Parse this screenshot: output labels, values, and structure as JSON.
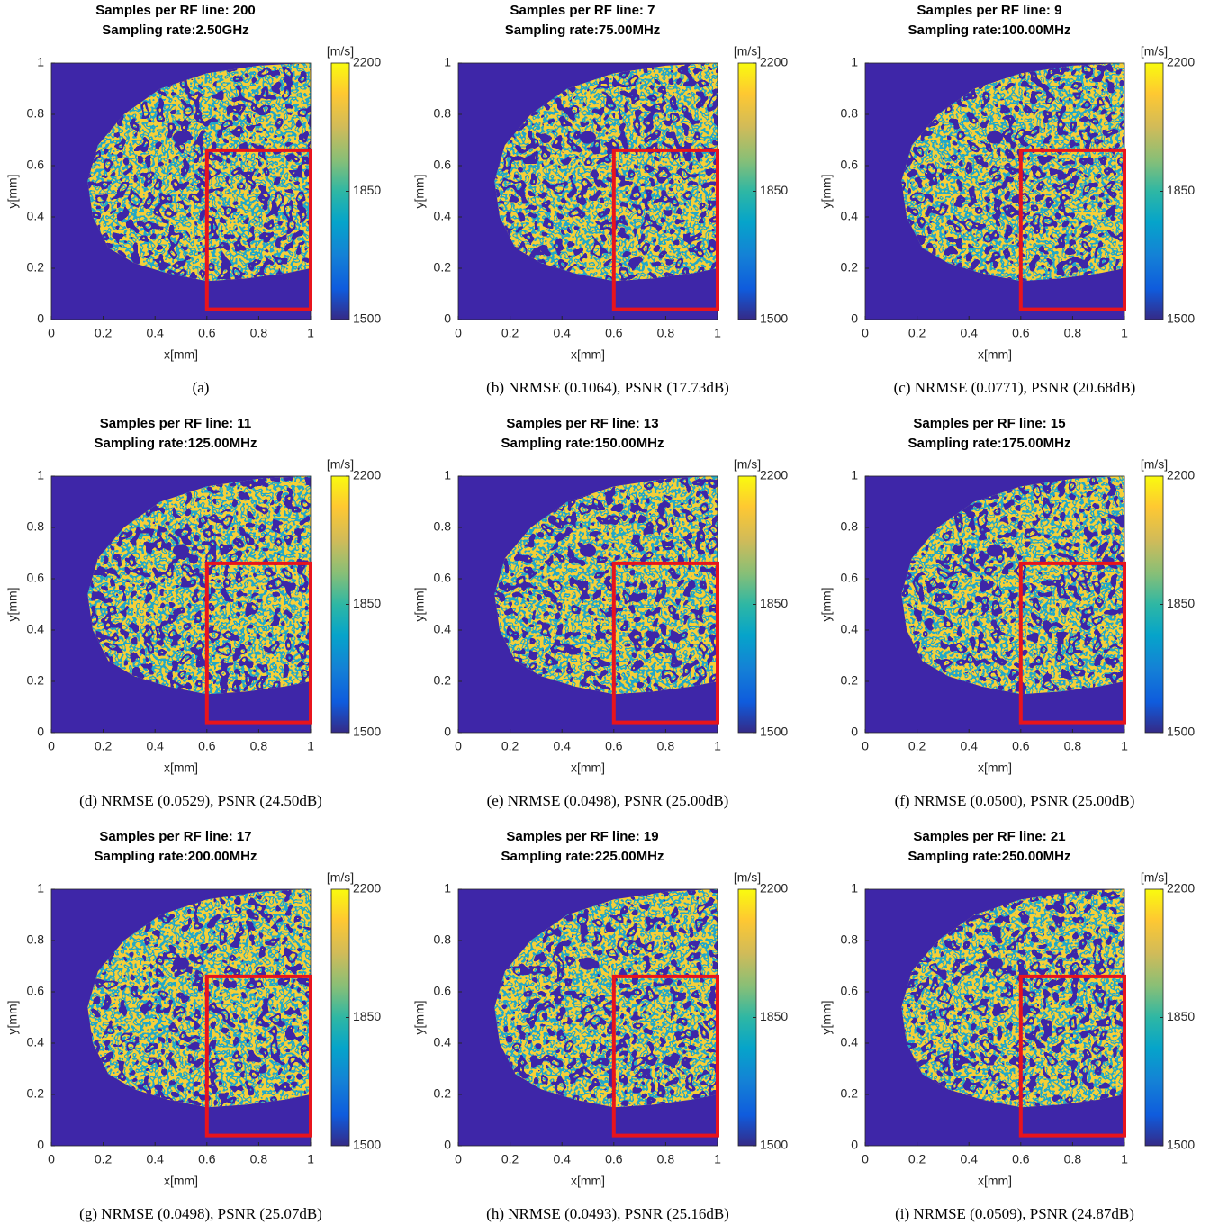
{
  "chart_data": [
    {
      "type": "image",
      "title": [
        "Samples per RF line: 200",
        "Sampling rate:2.50GHz"
      ],
      "xlabel": "x[mm]",
      "ylabel": "y[mm]",
      "xlim": [
        0,
        1
      ],
      "ylim": [
        1,
        0
      ],
      "xticks": [
        0,
        0.2,
        0.4,
        0.6,
        0.8,
        1
      ],
      "yticks": [
        0,
        0.2,
        0.4,
        0.6,
        0.8,
        1
      ],
      "rectangle": {
        "x": [
          0.6,
          1
        ],
        "y": [
          0.04,
          0.66
        ],
        "color": "#e8141c"
      },
      "colorbar": {
        "label": "[m/s]",
        "lim": [
          1500,
          2200
        ],
        "ticks": [
          1500,
          1850,
          2200
        ]
      },
      "caption": "(a)"
    },
    {
      "type": "image",
      "title": [
        "Samples per RF line: 7",
        "Sampling rate:75.00MHz"
      ],
      "xlabel": "x[mm]",
      "ylabel": "y[mm]",
      "xlim": [
        0,
        1
      ],
      "ylim": [
        1,
        0
      ],
      "xticks": [
        0,
        0.2,
        0.4,
        0.6,
        0.8,
        1
      ],
      "yticks": [
        0,
        0.2,
        0.4,
        0.6,
        0.8,
        1
      ],
      "rectangle": {
        "x": [
          0.6,
          1
        ],
        "y": [
          0.04,
          0.66
        ],
        "color": "#e8141c"
      },
      "colorbar": {
        "label": "[m/s]",
        "lim": [
          1500,
          2200
        ],
        "ticks": [
          1500,
          1850,
          2200
        ]
      },
      "caption": "(b)  NRMSE (0.1064), PSNR (17.73dB)"
    },
    {
      "type": "image",
      "title": [
        "Samples per RF line: 9",
        "Sampling rate:100.00MHz"
      ],
      "xlabel": "x[mm]",
      "ylabel": "y[mm]",
      "xlim": [
        0,
        1
      ],
      "ylim": [
        1,
        0
      ],
      "xticks": [
        0,
        0.2,
        0.4,
        0.6,
        0.8,
        1
      ],
      "yticks": [
        0,
        0.2,
        0.4,
        0.6,
        0.8,
        1
      ],
      "rectangle": {
        "x": [
          0.6,
          1
        ],
        "y": [
          0.04,
          0.66
        ],
        "color": "#e8141c"
      },
      "colorbar": {
        "label": "[m/s]",
        "lim": [
          1500,
          2200
        ],
        "ticks": [
          1500,
          1850,
          2200
        ]
      },
      "caption": "(c)  NRMSE (0.0771), PSNR (20.68dB)"
    },
    {
      "type": "image",
      "title": [
        "Samples per RF line: 11",
        "Sampling rate:125.00MHz"
      ],
      "xlabel": "x[mm]",
      "ylabel": "y[mm]",
      "xlim": [
        0,
        1
      ],
      "ylim": [
        1,
        0
      ],
      "xticks": [
        0,
        0.2,
        0.4,
        0.6,
        0.8,
        1
      ],
      "yticks": [
        0,
        0.2,
        0.4,
        0.6,
        0.8,
        1
      ],
      "rectangle": {
        "x": [
          0.6,
          1
        ],
        "y": [
          0.04,
          0.66
        ],
        "color": "#e8141c"
      },
      "colorbar": {
        "label": "[m/s]",
        "lim": [
          1500,
          2200
        ],
        "ticks": [
          1500,
          1850,
          2200
        ]
      },
      "caption": "(d)  NRMSE (0.0529), PSNR (24.50dB)"
    },
    {
      "type": "image",
      "title": [
        "Samples per RF line: 13",
        "Sampling rate:150.00MHz"
      ],
      "xlabel": "x[mm]",
      "ylabel": "y[mm]",
      "xlim": [
        0,
        1
      ],
      "ylim": [
        1,
        0
      ],
      "xticks": [
        0,
        0.2,
        0.4,
        0.6,
        0.8,
        1
      ],
      "yticks": [
        0,
        0.2,
        0.4,
        0.6,
        0.8,
        1
      ],
      "rectangle": {
        "x": [
          0.6,
          1
        ],
        "y": [
          0.04,
          0.66
        ],
        "color": "#e8141c"
      },
      "colorbar": {
        "label": "[m/s]",
        "lim": [
          1500,
          2200
        ],
        "ticks": [
          1500,
          1850,
          2200
        ]
      },
      "caption": "(e)  NRMSE (0.0498), PSNR (25.00dB)"
    },
    {
      "type": "image",
      "title": [
        "Samples per RF line: 15",
        "Sampling rate:175.00MHz"
      ],
      "xlabel": "x[mm]",
      "ylabel": "y[mm]",
      "xlim": [
        0,
        1
      ],
      "ylim": [
        1,
        0
      ],
      "xticks": [
        0,
        0.2,
        0.4,
        0.6,
        0.8,
        1
      ],
      "yticks": [
        0,
        0.2,
        0.4,
        0.6,
        0.8,
        1
      ],
      "rectangle": {
        "x": [
          0.6,
          1
        ],
        "y": [
          0.04,
          0.66
        ],
        "color": "#e8141c"
      },
      "colorbar": {
        "label": "[m/s]",
        "lim": [
          1500,
          2200
        ],
        "ticks": [
          1500,
          1850,
          2200
        ]
      },
      "caption": "(f)  NRMSE (0.0500), PSNR (25.00dB)"
    },
    {
      "type": "image",
      "title": [
        "Samples per RF line: 17",
        "Sampling rate:200.00MHz"
      ],
      "xlabel": "x[mm]",
      "ylabel": "y[mm]",
      "xlim": [
        0,
        1
      ],
      "ylim": [
        1,
        0
      ],
      "xticks": [
        0,
        0.2,
        0.4,
        0.6,
        0.8,
        1
      ],
      "yticks": [
        0,
        0.2,
        0.4,
        0.6,
        0.8,
        1
      ],
      "rectangle": {
        "x": [
          0.6,
          1
        ],
        "y": [
          0.04,
          0.66
        ],
        "color": "#e8141c"
      },
      "colorbar": {
        "label": "[m/s]",
        "lim": [
          1500,
          2200
        ],
        "ticks": [
          1500,
          1850,
          2200
        ]
      },
      "caption": "(g)  NRMSE (0.0498), PSNR (25.07dB)"
    },
    {
      "type": "image",
      "title": [
        "Samples per RF line: 19",
        "Sampling rate:225.00MHz"
      ],
      "xlabel": "x[mm]",
      "ylabel": "y[mm]",
      "xlim": [
        0,
        1
      ],
      "ylim": [
        1,
        0
      ],
      "xticks": [
        0,
        0.2,
        0.4,
        0.6,
        0.8,
        1
      ],
      "yticks": [
        0,
        0.2,
        0.4,
        0.6,
        0.8,
        1
      ],
      "rectangle": {
        "x": [
          0.6,
          1
        ],
        "y": [
          0.04,
          0.66
        ],
        "color": "#e8141c"
      },
      "colorbar": {
        "label": "[m/s]",
        "lim": [
          1500,
          2200
        ],
        "ticks": [
          1500,
          1850,
          2200
        ]
      },
      "caption": "(h)  NRMSE (0.0493), PSNR (25.16dB)"
    },
    {
      "type": "image",
      "title": [
        "Samples per RF line: 21",
        "Sampling rate:250.00MHz"
      ],
      "xlabel": "x[mm]",
      "ylabel": "y[mm]",
      "xlim": [
        0,
        1
      ],
      "ylim": [
        1,
        0
      ],
      "xticks": [
        0,
        0.2,
        0.4,
        0.6,
        0.8,
        1
      ],
      "yticks": [
        0,
        0.2,
        0.4,
        0.6,
        0.8,
        1
      ],
      "rectangle": {
        "x": [
          0.6,
          1
        ],
        "y": [
          0.04,
          0.66
        ],
        "color": "#e8141c"
      },
      "colorbar": {
        "label": "[m/s]",
        "lim": [
          1500,
          2200
        ],
        "ticks": [
          1500,
          1850,
          2200
        ]
      },
      "caption": "(i)  NRMSE (0.0509), PSNR (24.87dB)"
    }
  ]
}
